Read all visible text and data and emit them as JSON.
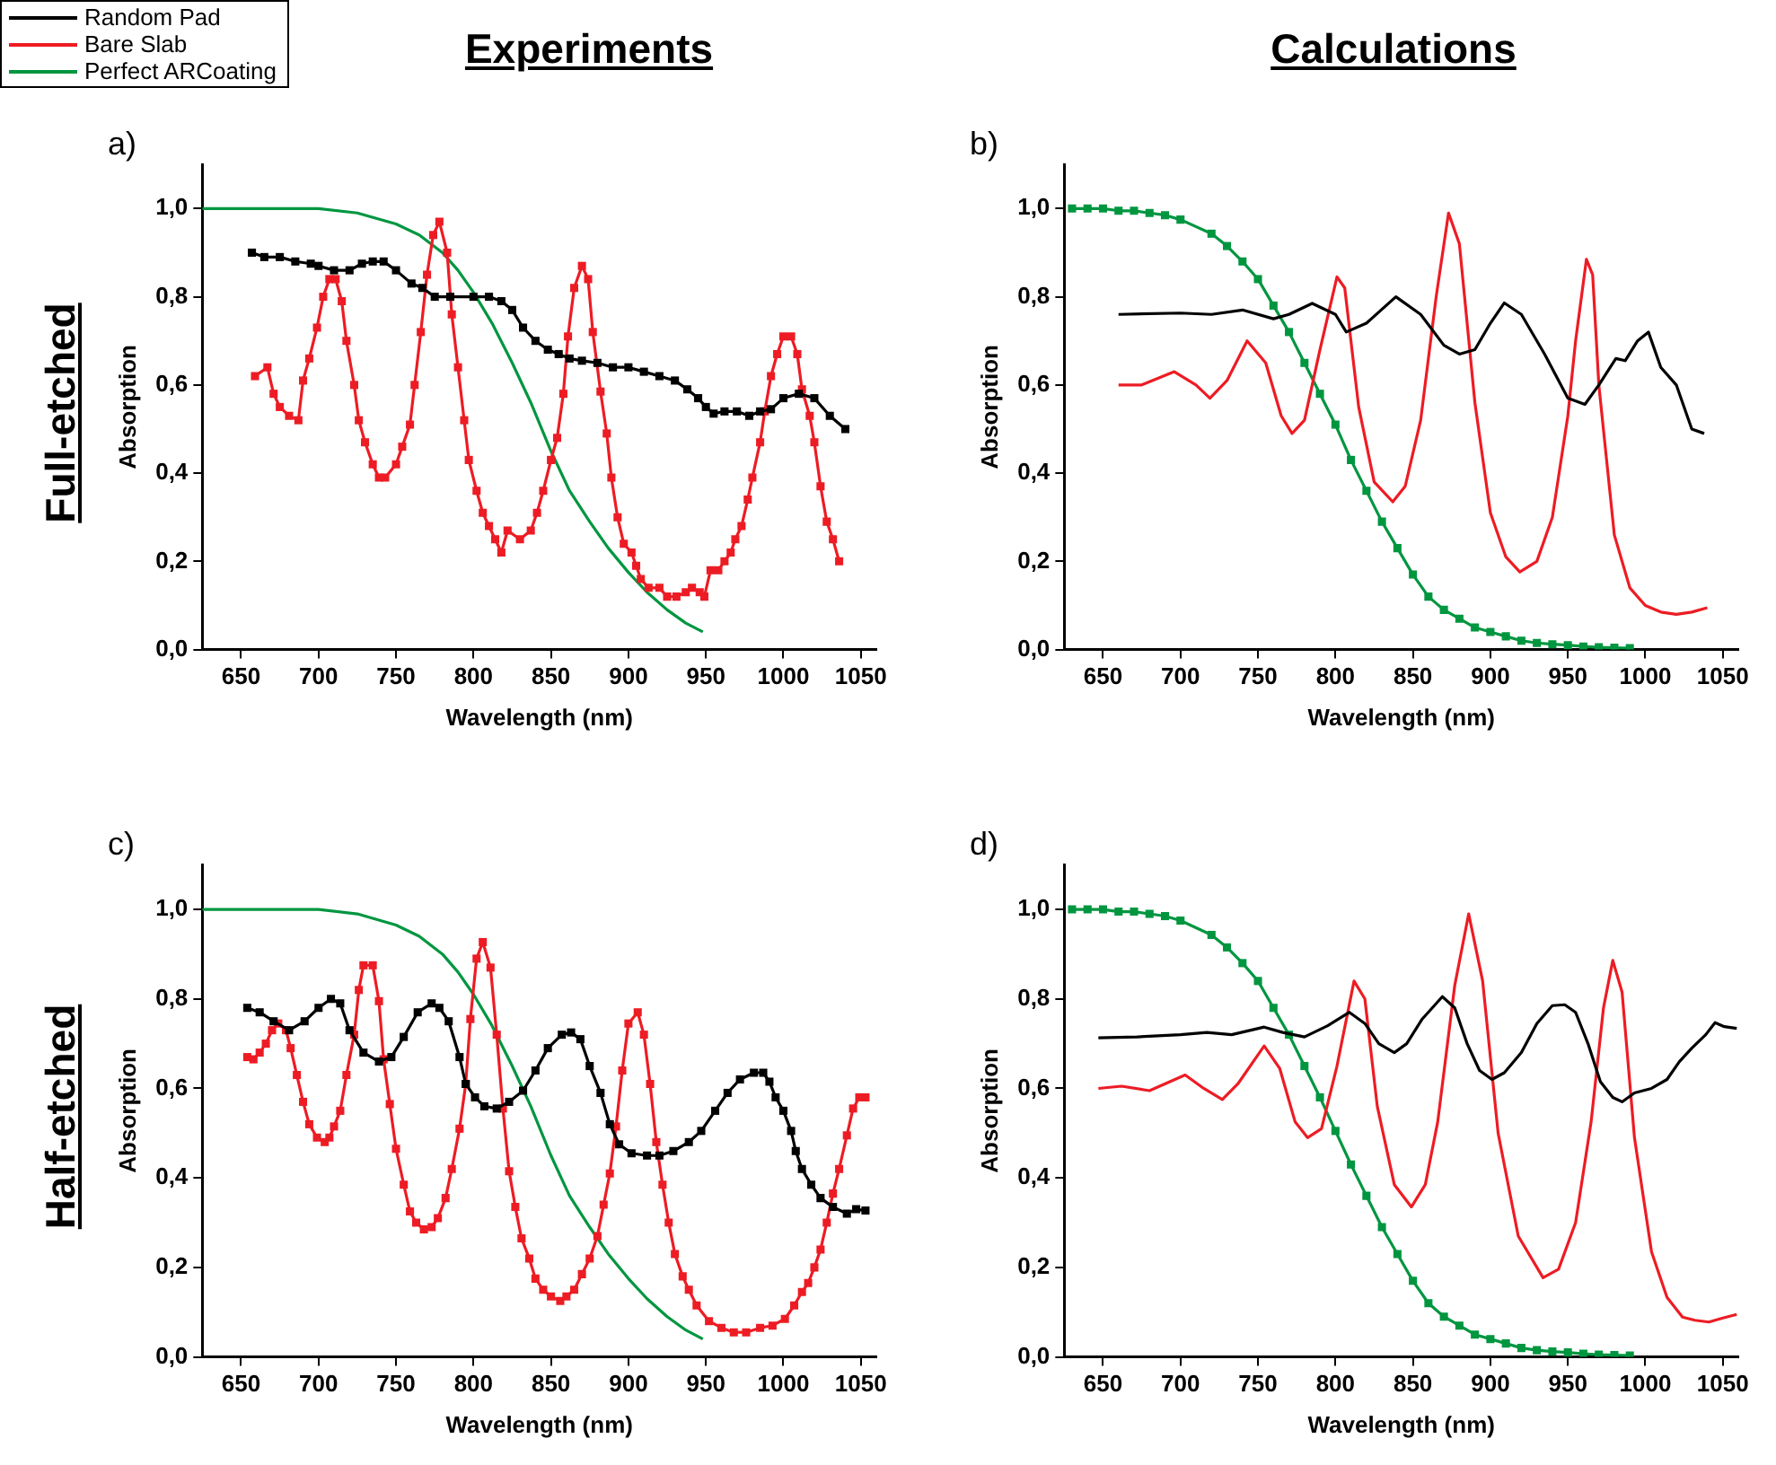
{
  "chart_data": [
    {
      "type": "line",
      "title": "a)",
      "xlabel": "Wavelength (nm)",
      "ylabel": "Absorption",
      "annotations": [
        "Experiments",
        "Full-etched"
      ],
      "legend": "top left",
      "xlim": [
        625,
        1060
      ],
      "ylim": [
        0,
        1.1
      ],
      "xticks": [
        650,
        700,
        750,
        800,
        850,
        900,
        950,
        1000,
        1050
      ],
      "yticks": [
        {
          "value": 0,
          "label": "0,0"
        },
        {
          "value": 0.2,
          "label": "0,2"
        },
        {
          "value": 0.4,
          "label": "0,4"
        },
        {
          "value": 0.6,
          "label": "0,6"
        },
        {
          "value": 0.8,
          "label": "0,8"
        },
        {
          "value": 1,
          "label": "1,0"
        }
      ],
      "series": [
        {
          "name": "Random Pad",
          "color": "#000000",
          "marker": "square",
          "x": [
            657,
            665,
            675,
            685,
            695,
            700,
            710,
            720,
            728,
            735,
            742,
            750,
            760,
            767,
            775,
            785,
            800,
            810,
            818,
            825,
            832,
            840,
            848,
            855,
            862,
            870,
            880,
            890,
            900,
            910,
            920,
            930,
            938,
            945,
            950,
            955,
            962,
            970,
            978,
            985,
            992,
            1000,
            1010,
            1020,
            1030,
            1040
          ],
          "values": [
            0.9,
            0.89,
            0.89,
            0.88,
            0.875,
            0.87,
            0.86,
            0.86,
            0.875,
            0.88,
            0.88,
            0.86,
            0.83,
            0.82,
            0.8,
            0.8,
            0.8,
            0.8,
            0.79,
            0.77,
            0.73,
            0.7,
            0.68,
            0.67,
            0.66,
            0.655,
            0.65,
            0.64,
            0.64,
            0.63,
            0.62,
            0.61,
            0.59,
            0.57,
            0.55,
            0.535,
            0.54,
            0.54,
            0.53,
            0.54,
            0.545,
            0.57,
            0.58,
            0.57,
            0.53,
            0.5
          ]
        },
        {
          "name": "Bare Slab",
          "color": "#ed1c24",
          "marker": "square",
          "x": [
            659,
            667,
            671,
            675,
            681,
            687,
            690,
            694,
            699,
            703,
            707,
            711,
            715,
            718,
            723,
            726,
            730,
            735,
            739,
            743,
            750,
            754,
            759,
            762,
            766,
            770,
            774,
            778,
            783,
            786,
            790,
            794,
            797,
            802,
            806,
            810,
            814,
            818,
            822,
            830,
            837,
            841,
            845,
            850,
            854,
            858,
            861,
            865,
            870,
            874,
            877,
            882,
            886,
            889,
            893,
            897,
            902,
            905,
            908,
            913,
            920,
            925,
            931,
            937,
            941,
            946,
            949,
            953,
            958,
            962,
            966,
            969,
            973,
            977,
            980,
            985,
            988,
            992,
            996,
            1000,
            1005,
            1009,
            1012,
            1017,
            1020,
            1024,
            1028,
            1032,
            1036
          ],
          "values": [
            0.62,
            0.64,
            0.58,
            0.55,
            0.53,
            0.52,
            0.61,
            0.66,
            0.73,
            0.8,
            0.84,
            0.84,
            0.79,
            0.7,
            0.6,
            0.52,
            0.47,
            0.42,
            0.39,
            0.39,
            0.42,
            0.46,
            0.51,
            0.6,
            0.72,
            0.85,
            0.94,
            0.97,
            0.9,
            0.76,
            0.64,
            0.52,
            0.43,
            0.36,
            0.31,
            0.28,
            0.25,
            0.22,
            0.27,
            0.25,
            0.27,
            0.31,
            0.36,
            0.43,
            0.48,
            0.58,
            0.71,
            0.82,
            0.87,
            0.84,
            0.72,
            0.585,
            0.49,
            0.39,
            0.3,
            0.24,
            0.22,
            0.19,
            0.16,
            0.14,
            0.14,
            0.12,
            0.12,
            0.13,
            0.14,
            0.13,
            0.12,
            0.18,
            0.18,
            0.2,
            0.22,
            0.25,
            0.28,
            0.34,
            0.39,
            0.47,
            0.54,
            0.62,
            0.67,
            0.71,
            0.71,
            0.67,
            0.59,
            0.53,
            0.47,
            0.37,
            0.29,
            0.25,
            0.2
          ]
        },
        {
          "name": "Perfect ARCoating",
          "color": "#009640",
          "marker": "none",
          "x": [
            625,
            700,
            725,
            750,
            765,
            780,
            790,
            800,
            812,
            825,
            837,
            850,
            862,
            875,
            887,
            900,
            912,
            925,
            937,
            948
          ],
          "values": [
            1,
            1,
            0.99,
            0.965,
            0.94,
            0.9,
            0.86,
            0.81,
            0.74,
            0.65,
            0.56,
            0.45,
            0.36,
            0.29,
            0.23,
            0.175,
            0.13,
            0.09,
            0.06,
            0.04
          ]
        }
      ]
    },
    {
      "type": "line",
      "title": "b)",
      "xlabel": "Wavelength (nm)",
      "ylabel": "Absorption",
      "annotations": [
        "Calculations"
      ],
      "xlim": [
        625,
        1060
      ],
      "ylim": [
        0,
        1.1
      ],
      "xticks": [
        650,
        700,
        750,
        800,
        850,
        900,
        950,
        1000,
        1050
      ],
      "yticks": [
        {
          "value": 0,
          "label": "0,0"
        },
        {
          "value": 0.2,
          "label": "0,2"
        },
        {
          "value": 0.4,
          "label": "0,4"
        },
        {
          "value": 0.6,
          "label": "0,6"
        },
        {
          "value": 0.8,
          "label": "0,8"
        },
        {
          "value": 1,
          "label": "1,0"
        }
      ],
      "series": [
        {
          "color": "#000000",
          "marker": "none",
          "x": [
            660,
            700,
            720,
            740,
            760,
            770,
            785,
            800,
            807,
            820,
            839,
            855,
            870,
            880,
            890,
            900,
            909,
            920,
            935,
            950,
            961,
            970,
            981,
            987,
            995,
            1002,
            1010,
            1020,
            1030,
            1038
          ],
          "values": [
            0.76,
            0.763,
            0.76,
            0.77,
            0.75,
            0.76,
            0.785,
            0.76,
            0.72,
            0.74,
            0.8,
            0.76,
            0.69,
            0.67,
            0.68,
            0.74,
            0.786,
            0.76,
            0.67,
            0.57,
            0.556,
            0.6,
            0.66,
            0.655,
            0.7,
            0.72,
            0.64,
            0.6,
            0.5,
            0.49
          ]
        },
        {
          "color": "#ed1c24",
          "marker": "none",
          "x": [
            660,
            675,
            696,
            710,
            719,
            730,
            743,
            755,
            765,
            772,
            780,
            790,
            801,
            806,
            815,
            825,
            837,
            845,
            855,
            865,
            873,
            880,
            890,
            900,
            910,
            919,
            930,
            940,
            950,
            955,
            962,
            966,
            970,
            980,
            990,
            1000,
            1010,
            1020,
            1030,
            1040
          ],
          "values": [
            0.6,
            0.6,
            0.63,
            0.6,
            0.57,
            0.61,
            0.7,
            0.65,
            0.53,
            0.49,
            0.52,
            0.68,
            0.845,
            0.82,
            0.55,
            0.38,
            0.335,
            0.37,
            0.52,
            0.8,
            0.99,
            0.92,
            0.56,
            0.31,
            0.21,
            0.176,
            0.2,
            0.3,
            0.53,
            0.7,
            0.885,
            0.85,
            0.6,
            0.26,
            0.14,
            0.1,
            0.085,
            0.08,
            0.085,
            0.095
          ]
        },
        {
          "color": "#009640",
          "marker": "square",
          "x": [
            630,
            640,
            650,
            660,
            670,
            680,
            690,
            700,
            720,
            730,
            740,
            750,
            760,
            770,
            780,
            790,
            800,
            810,
            820,
            830,
            840,
            850,
            860,
            870,
            880,
            890,
            900,
            910,
            920,
            930,
            940,
            950,
            960,
            970,
            980,
            990
          ],
          "values": [
            1,
            1,
            1,
            0.995,
            0.995,
            0.99,
            0.985,
            0.975,
            0.943,
            0.915,
            0.88,
            0.84,
            0.78,
            0.72,
            0.65,
            0.58,
            0.51,
            0.43,
            0.36,
            0.29,
            0.23,
            0.17,
            0.12,
            0.09,
            0.07,
            0.05,
            0.04,
            0.03,
            0.02,
            0.015,
            0.012,
            0.01,
            0.007,
            0.005,
            0.004,
            0.003
          ]
        }
      ]
    },
    {
      "type": "line",
      "title": "c)",
      "xlabel": "Wavelength (nm)",
      "ylabel": "Absorption",
      "annotations": [
        "Half-etched"
      ],
      "xlim": [
        625,
        1060
      ],
      "ylim": [
        0,
        1.1
      ],
      "xticks": [
        650,
        700,
        750,
        800,
        850,
        900,
        950,
        1000,
        1050
      ],
      "yticks": [
        {
          "value": 0,
          "label": "0,0"
        },
        {
          "value": 0.2,
          "label": "0,2"
        },
        {
          "value": 0.4,
          "label": "0,4"
        },
        {
          "value": 0.6,
          "label": "0,6"
        },
        {
          "value": 0.8,
          "label": "0,8"
        },
        {
          "value": 1,
          "label": "1,0"
        }
      ],
      "series": [
        {
          "color": "#000000",
          "marker": "square",
          "x": [
            654,
            662,
            671,
            681,
            691,
            700,
            708,
            714,
            720,
            729,
            739,
            747,
            755,
            764,
            773,
            778,
            784,
            791,
            795,
            801,
            807,
            815,
            823,
            832,
            840,
            848,
            857,
            863,
            869,
            875,
            882,
            888,
            894,
            902,
            912,
            920,
            929,
            939,
            947,
            956,
            964,
            972,
            981,
            987,
            991,
            995,
            1000,
            1005,
            1008,
            1012,
            1018,
            1024,
            1032,
            1041,
            1047,
            1053
          ],
          "values": [
            0.78,
            0.77,
            0.75,
            0.73,
            0.75,
            0.78,
            0.8,
            0.79,
            0.73,
            0.68,
            0.66,
            0.67,
            0.715,
            0.77,
            0.79,
            0.78,
            0.75,
            0.67,
            0.61,
            0.58,
            0.56,
            0.555,
            0.57,
            0.595,
            0.64,
            0.69,
            0.72,
            0.725,
            0.71,
            0.65,
            0.59,
            0.52,
            0.475,
            0.455,
            0.45,
            0.45,
            0.46,
            0.48,
            0.505,
            0.55,
            0.59,
            0.62,
            0.635,
            0.635,
            0.615,
            0.58,
            0.55,
            0.505,
            0.46,
            0.42,
            0.385,
            0.355,
            0.335,
            0.32,
            0.33,
            0.327
          ]
        },
        {
          "color": "#ed1c24",
          "marker": "square",
          "x": [
            654,
            658,
            662,
            666,
            670,
            674,
            679,
            682,
            686,
            690,
            694,
            699,
            704,
            707,
            710,
            714,
            718,
            723,
            726,
            729,
            735,
            739,
            742,
            746,
            750,
            755,
            759,
            763,
            768,
            773,
            777,
            782,
            786,
            791,
            795,
            798,
            802,
            806,
            811,
            815,
            819,
            823,
            827,
            831,
            836,
            840,
            845,
            850,
            856,
            860,
            865,
            870,
            875,
            880,
            884,
            888,
            892,
            896,
            900,
            906,
            910,
            914,
            918,
            922,
            926,
            930,
            935,
            939,
            944,
            952,
            960,
            968,
            976,
            985,
            993,
            1001,
            1007,
            1012,
            1016,
            1020,
            1024,
            1028,
            1032,
            1036,
            1041,
            1045,
            1049,
            1053
          ],
          "values": [
            0.67,
            0.665,
            0.68,
            0.7,
            0.73,
            0.745,
            0.73,
            0.69,
            0.63,
            0.57,
            0.52,
            0.49,
            0.48,
            0.49,
            0.515,
            0.55,
            0.63,
            0.72,
            0.82,
            0.875,
            0.875,
            0.795,
            0.665,
            0.565,
            0.465,
            0.385,
            0.325,
            0.3,
            0.285,
            0.29,
            0.31,
            0.355,
            0.42,
            0.51,
            0.61,
            0.755,
            0.89,
            0.927,
            0.87,
            0.72,
            0.555,
            0.415,
            0.335,
            0.265,
            0.22,
            0.175,
            0.15,
            0.135,
            0.125,
            0.135,
            0.15,
            0.185,
            0.22,
            0.27,
            0.34,
            0.41,
            0.515,
            0.64,
            0.745,
            0.77,
            0.72,
            0.61,
            0.48,
            0.385,
            0.3,
            0.23,
            0.18,
            0.15,
            0.115,
            0.08,
            0.065,
            0.055,
            0.055,
            0.065,
            0.07,
            0.085,
            0.115,
            0.145,
            0.165,
            0.2,
            0.24,
            0.3,
            0.365,
            0.42,
            0.495,
            0.555,
            0.58,
            0.58
          ]
        },
        {
          "color": "#009640",
          "marker": "none",
          "x": [
            625,
            700,
            725,
            750,
            765,
            780,
            790,
            800,
            812,
            825,
            837,
            850,
            862,
            875,
            887,
            900,
            912,
            925,
            937,
            948
          ],
          "values": [
            1,
            1,
            0.99,
            0.965,
            0.94,
            0.9,
            0.86,
            0.81,
            0.74,
            0.65,
            0.56,
            0.45,
            0.36,
            0.29,
            0.23,
            0.175,
            0.13,
            0.09,
            0.06,
            0.04
          ]
        }
      ]
    },
    {
      "type": "line",
      "title": "d)",
      "xlabel": "Wavelength (nm)",
      "ylabel": "Absorption",
      "xlim": [
        625,
        1060
      ],
      "ylim": [
        0,
        1.1
      ],
      "xticks": [
        650,
        700,
        750,
        800,
        850,
        900,
        950,
        1000,
        1050
      ],
      "yticks": [
        {
          "value": 0,
          "label": "0,0"
        },
        {
          "value": 0.2,
          "label": "0,2"
        },
        {
          "value": 0.4,
          "label": "0,4"
        },
        {
          "value": 0.6,
          "label": "0,6"
        },
        {
          "value": 0.8,
          "label": "0,8"
        },
        {
          "value": 1,
          "label": "1,0"
        }
      ],
      "series": [
        {
          "color": "#000000",
          "marker": "none",
          "x": [
            647,
            672,
            700,
            717,
            733,
            754,
            766,
            780,
            795,
            809,
            819,
            828,
            838,
            846,
            856,
            869,
            877,
            885,
            893,
            901,
            909,
            920,
            930,
            940,
            948,
            955,
            963,
            971,
            979,
            985,
            993,
            1004,
            1014,
            1022,
            1030,
            1039,
            1045,
            1051,
            1059
          ],
          "values": [
            0.713,
            0.715,
            0.72,
            0.725,
            0.72,
            0.737,
            0.725,
            0.715,
            0.74,
            0.77,
            0.745,
            0.7,
            0.68,
            0.7,
            0.755,
            0.805,
            0.78,
            0.7,
            0.64,
            0.62,
            0.635,
            0.68,
            0.745,
            0.785,
            0.787,
            0.77,
            0.7,
            0.615,
            0.58,
            0.57,
            0.59,
            0.6,
            0.62,
            0.66,
            0.69,
            0.72,
            0.747,
            0.738,
            0.734
          ]
        },
        {
          "color": "#ed1c24",
          "marker": "none",
          "x": [
            647,
            662,
            680,
            703,
            715,
            727,
            737,
            754,
            764,
            774,
            782,
            791,
            801,
            812,
            819,
            827,
            838,
            849,
            858,
            866,
            877,
            886,
            895,
            905,
            918,
            934,
            944,
            955,
            965,
            973,
            979,
            985,
            993,
            1004,
            1014,
            1024,
            1032,
            1041,
            1049,
            1059
          ],
          "values": [
            0.6,
            0.605,
            0.595,
            0.63,
            0.6,
            0.575,
            0.61,
            0.695,
            0.645,
            0.525,
            0.49,
            0.51,
            0.65,
            0.84,
            0.8,
            0.56,
            0.385,
            0.335,
            0.385,
            0.525,
            0.83,
            0.99,
            0.84,
            0.5,
            0.27,
            0.177,
            0.196,
            0.3,
            0.525,
            0.78,
            0.886,
            0.815,
            0.49,
            0.235,
            0.133,
            0.089,
            0.082,
            0.078,
            0.086,
            0.095
          ]
        },
        {
          "color": "#009640",
          "marker": "square",
          "x": [
            630,
            640,
            650,
            660,
            670,
            680,
            690,
            700,
            720,
            730,
            740,
            750,
            760,
            770,
            780,
            790,
            800,
            810,
            820,
            830,
            840,
            850,
            860,
            870,
            880,
            890,
            900,
            910,
            920,
            930,
            940,
            950,
            960,
            970,
            980,
            990
          ],
          "values": [
            1,
            1,
            1,
            0.995,
            0.995,
            0.99,
            0.985,
            0.975,
            0.943,
            0.915,
            0.88,
            0.84,
            0.78,
            0.72,
            0.65,
            0.58,
            0.505,
            0.43,
            0.36,
            0.29,
            0.23,
            0.17,
            0.12,
            0.09,
            0.07,
            0.05,
            0.04,
            0.03,
            0.02,
            0.015,
            0.012,
            0.01,
            0.007,
            0.005,
            0.004,
            0.003
          ]
        }
      ]
    }
  ]
}
